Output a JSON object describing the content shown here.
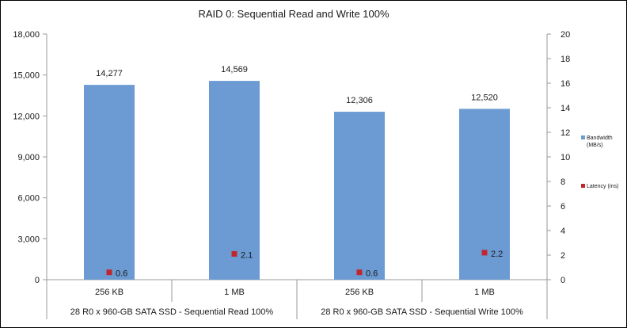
{
  "chart_data": {
    "type": "bar",
    "title": "RAID 0: Sequential Read and Write 100%",
    "groups": [
      "28 R0 x 960-GB SATA SSD - Sequential Read 100%",
      "28 R0 x 960-GB SATA SSD - Sequential Write 100%"
    ],
    "categories": [
      "256 KB",
      "1 MB",
      "256 KB",
      "1 MB"
    ],
    "series": [
      {
        "name": "Bandwidth (MB/s)",
        "kind": "bar",
        "axis": "left",
        "color": "#6b9bd2",
        "values": [
          14277,
          14569,
          12306,
          12520
        ],
        "labels": [
          "14,277",
          "14,569",
          "12,306",
          "12,520"
        ]
      },
      {
        "name": "Latency (ms)",
        "kind": "marker",
        "axis": "right",
        "color": "#c0272d",
        "values": [
          0.6,
          2.1,
          0.6,
          2.2
        ],
        "labels": [
          "0.6",
          "2.1",
          "0.6",
          "2.2"
        ]
      }
    ],
    "y_left": {
      "min": 0,
      "max": 18000,
      "ticks": [
        0,
        3000,
        6000,
        9000,
        12000,
        15000,
        18000
      ],
      "tick_labels": [
        "0",
        "3,000",
        "6,000",
        "9,000",
        "12,000",
        "15,000",
        "18,000"
      ]
    },
    "y_right": {
      "min": 0,
      "max": 20,
      "ticks": [
        0,
        2,
        4,
        6,
        8,
        10,
        12,
        14,
        16,
        18,
        20
      ],
      "tick_labels": [
        "0",
        "2",
        "4",
        "6",
        "8",
        "10",
        "12",
        "14",
        "16",
        "18",
        "20"
      ]
    },
    "legend_position": "right",
    "grid": false
  }
}
